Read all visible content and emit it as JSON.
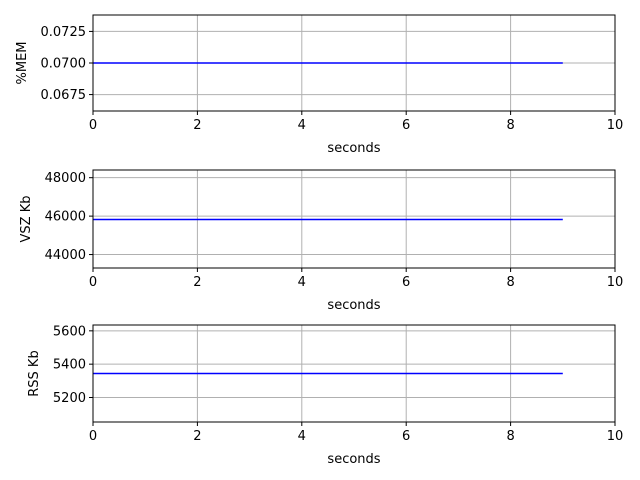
{
  "chart_data": [
    {
      "type": "line",
      "xlabel": "seconds",
      "ylabel": "%MEM",
      "xlim": [
        0,
        10
      ],
      "ylim": [
        0.0662,
        0.0738
      ],
      "xticks": [
        0,
        2,
        4,
        6,
        8,
        10
      ],
      "yticks": [
        0.0675,
        0.07,
        0.0725
      ],
      "ytick_labels": [
        "0.0675",
        "0.0700",
        "0.0725"
      ],
      "grid": true,
      "series": [
        {
          "color": "#0000ff",
          "x": [
            0,
            1,
            2,
            3,
            4,
            5,
            6,
            7,
            8,
            9
          ],
          "y": [
            0.07,
            0.07,
            0.07,
            0.07,
            0.07,
            0.07,
            0.07,
            0.07,
            0.07,
            0.07
          ]
        }
      ]
    },
    {
      "type": "line",
      "xlabel": "seconds",
      "ylabel": "VSZ Kb",
      "xlim": [
        0,
        10
      ],
      "ylim": [
        43300,
        48400
      ],
      "xticks": [
        0,
        2,
        4,
        6,
        8,
        10
      ],
      "yticks": [
        44000,
        46000,
        48000
      ],
      "ytick_labels": [
        "44000",
        "46000",
        "48000"
      ],
      "grid": true,
      "series": [
        {
          "color": "#0000ff",
          "x": [
            0,
            1,
            2,
            3,
            4,
            5,
            6,
            7,
            8,
            9
          ],
          "y": [
            45824,
            45824,
            45824,
            45824,
            45824,
            45824,
            45824,
            45824,
            45824,
            45824
          ]
        }
      ]
    },
    {
      "type": "line",
      "xlabel": "seconds",
      "ylabel": "RSS Kb",
      "xlim": [
        0,
        10
      ],
      "ylim": [
        5053,
        5635
      ],
      "xticks": [
        0,
        2,
        4,
        6,
        8,
        10
      ],
      "yticks": [
        5200,
        5400,
        5600
      ],
      "ytick_labels": [
        "5200",
        "5400",
        "5600"
      ],
      "grid": true,
      "series": [
        {
          "color": "#0000ff",
          "x": [
            0,
            1,
            2,
            3,
            4,
            5,
            6,
            7,
            8,
            9
          ],
          "y": [
            5344,
            5344,
            5344,
            5344,
            5344,
            5344,
            5344,
            5344,
            5344,
            5344
          ]
        }
      ]
    }
  ]
}
